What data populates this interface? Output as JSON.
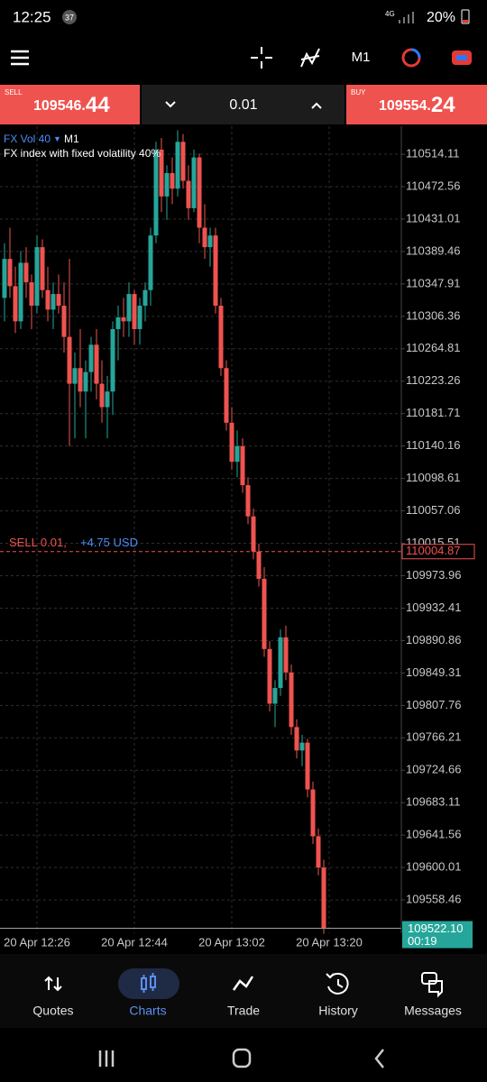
{
  "status_bar": {
    "time": "12:25",
    "notifications": "37",
    "network": "4G",
    "battery": "20%"
  },
  "toolbar": {
    "timeframe": "M1"
  },
  "order_panel": {
    "sell_label": "SELL",
    "sell_price": "109546.",
    "sell_price_big": "44",
    "volume": "0.01",
    "buy_label": "BUY",
    "buy_price": "109554.",
    "buy_price_big": "24"
  },
  "chart_data": {
    "type": "candlestick",
    "symbol": "FX Vol 40",
    "timeframe": "M1",
    "description": "FX index with fixed volatility 40%",
    "open": [
      110330,
      110380,
      110345,
      110300,
      110375,
      110350,
      110320,
      110395,
      110340,
      110315,
      110335,
      110320,
      110280,
      110220,
      110240,
      110210,
      110235,
      110270,
      110220,
      110190,
      110210,
      110290,
      110305,
      110300,
      110335,
      110290,
      110320,
      110340,
      110410,
      110520,
      110460,
      110490,
      110470,
      110530,
      110480,
      110445,
      110510,
      110420,
      110395,
      110410,
      110320,
      110240,
      110170,
      110120,
      110140,
      110090,
      110050,
      110005,
      109970,
      109880,
      109810,
      109830,
      109895,
      109850,
      109780,
      109750,
      109760,
      109700,
      109640,
      109600
    ],
    "high": [
      110400,
      110420,
      110370,
      110390,
      110395,
      110360,
      110410,
      110405,
      110370,
      110350,
      110360,
      110350,
      110380,
      110260,
      110290,
      110250,
      110280,
      110290,
      110250,
      110230,
      110300,
      110320,
      110330,
      110350,
      110340,
      110330,
      110350,
      110420,
      110530,
      110535,
      110500,
      110510,
      110545,
      110540,
      110500,
      110520,
      110515,
      110450,
      110420,
      110420,
      110330,
      110250,
      110190,
      110160,
      110150,
      110100,
      110060,
      110015,
      109985,
      109890,
      109840,
      109905,
      109910,
      109860,
      109790,
      109770,
      109765,
      109710,
      109650,
      109610
    ],
    "low": [
      110300,
      110330,
      110285,
      110290,
      110330,
      110290,
      110310,
      110330,
      110300,
      110290,
      110310,
      110260,
      110140,
      110150,
      110190,
      110150,
      110210,
      110200,
      110170,
      110150,
      110180,
      110250,
      110280,
      110280,
      110270,
      110270,
      110300,
      110320,
      110400,
      110440,
      110430,
      110450,
      110460,
      110470,
      110430,
      110440,
      110400,
      110380,
      110370,
      110310,
      110230,
      110160,
      110110,
      110100,
      110080,
      110040,
      109995,
      109960,
      109870,
      109800,
      109780,
      109820,
      109840,
      109770,
      109740,
      109730,
      109690,
      109630,
      109590,
      109515
    ],
    "close": [
      110380,
      110345,
      110300,
      110375,
      110350,
      110320,
      110395,
      110340,
      110315,
      110335,
      110320,
      110280,
      110220,
      110240,
      110210,
      110235,
      110270,
      110220,
      110190,
      110210,
      110290,
      110305,
      110300,
      110335,
      110290,
      110320,
      110340,
      110410,
      110520,
      110460,
      110490,
      110470,
      110530,
      110480,
      110445,
      110510,
      110420,
      110395,
      110410,
      110320,
      110240,
      110170,
      110120,
      110140,
      110090,
      110050,
      110005,
      109970,
      109880,
      109810,
      109830,
      109895,
      109850,
      109780,
      109750,
      109760,
      109700,
      109640,
      109600,
      109522.1
    ],
    "up_color": "#26a69a",
    "down_color": "#ef5350",
    "ylim": [
      109510,
      110550
    ],
    "yticks": [
      110514.11,
      110472.56,
      110431.01,
      110389.46,
      110347.91,
      110306.36,
      110264.81,
      110223.26,
      110181.71,
      110140.16,
      110098.61,
      110057.06,
      110015.51,
      109973.96,
      109932.41,
      109890.86,
      109849.31,
      109807.76,
      109766.21,
      109724.66,
      109683.11,
      109641.56,
      109600.01,
      109558.46
    ],
    "xticks": [
      {
        "value": 6,
        "label": "20 Apr 12:26"
      },
      {
        "value": 24,
        "label": "20 Apr 12:44"
      },
      {
        "value": 42,
        "label": "20 Apr 13:02"
      },
      {
        "value": 60,
        "label": "20 Apr 13:20"
      }
    ],
    "grid": true,
    "position": {
      "label": "SELL 0.01,",
      "profit": "+4.75 USD",
      "price": 110004.87
    },
    "last_price": {
      "value": 109522.1,
      "label": "109522.10"
    },
    "countdown": "00:19"
  },
  "nav": {
    "items": [
      "Quotes",
      "Charts",
      "Trade",
      "History",
      "Messages"
    ]
  }
}
